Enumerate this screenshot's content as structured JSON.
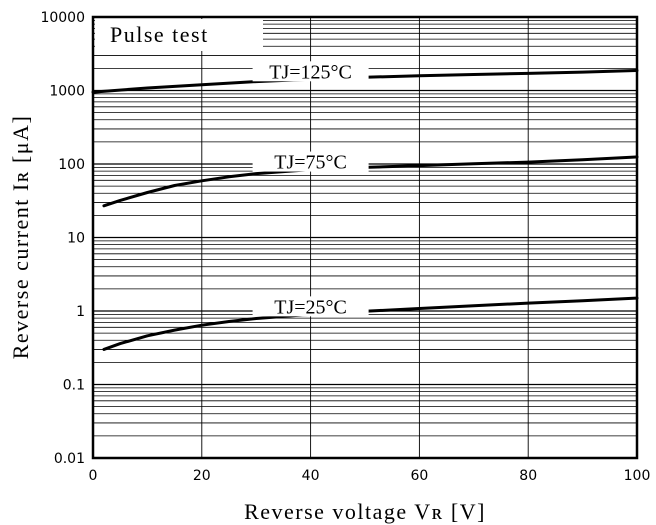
{
  "chart_data": {
    "type": "line",
    "title": "",
    "annotation": "Pulse test",
    "xlabel": "Reverse voltage Vʀ [V]",
    "ylabel": "Reverse current Iʀ [μA]",
    "xlim": [
      0,
      100
    ],
    "ylim": [
      0.01,
      10000
    ],
    "yscale": "log",
    "grid": true,
    "xticks": [
      "0",
      "20",
      "40",
      "60",
      "80",
      "100"
    ],
    "yticks": [
      "0.01",
      "0.1",
      "1",
      "10",
      "100",
      "1000",
      "10000"
    ],
    "series": [
      {
        "name": "TJ=125°C",
        "x": [
          0,
          10,
          20,
          30,
          40,
          50,
          60,
          70,
          80,
          90,
          100
        ],
        "y": [
          950,
          1080,
          1200,
          1320,
          1420,
          1510,
          1590,
          1650,
          1710,
          1780,
          1870
        ]
      },
      {
        "name": "TJ=75°C",
        "x": [
          2,
          5,
          10,
          15,
          20,
          25,
          30,
          40,
          50,
          60,
          70,
          80,
          90,
          100
        ],
        "y": [
          27,
          32,
          41,
          51,
          59,
          67,
          74,
          84,
          90,
          95,
          101,
          106,
          114,
          125
        ]
      },
      {
        "name": "TJ=25°C",
        "x": [
          2,
          5,
          10,
          15,
          20,
          25,
          30,
          40,
          50,
          60,
          70,
          80,
          90,
          100
        ],
        "y": [
          0.3,
          0.36,
          0.46,
          0.55,
          0.64,
          0.72,
          0.79,
          0.9,
          0.99,
          1.08,
          1.18,
          1.28,
          1.38,
          1.5
        ]
      }
    ]
  }
}
